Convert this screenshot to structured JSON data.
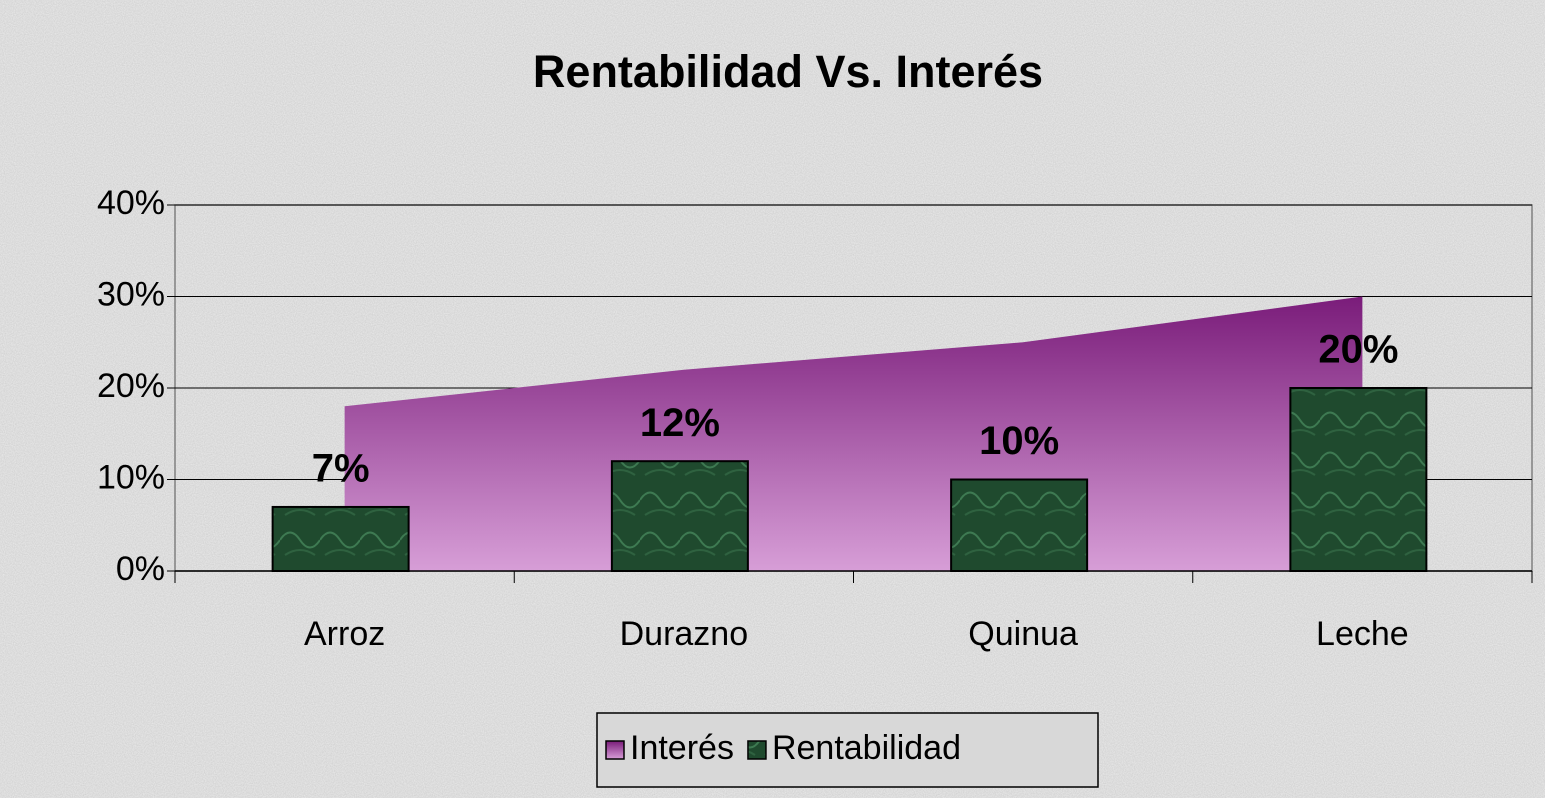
{
  "chart_data": {
    "type": "combo",
    "title": "Rentabilidad Vs. Interés",
    "categories": [
      "Arroz",
      "Durazno",
      "Quinua",
      "Leche"
    ],
    "series": [
      {
        "name": "Interés",
        "type": "area",
        "color": "#8a2a8a",
        "values": [
          18,
          22,
          25,
          30
        ]
      },
      {
        "name": "Rentabilidad",
        "type": "bar",
        "color": "#1f4a2e",
        "values": [
          7,
          12,
          10,
          20
        ],
        "value_labels": [
          "7%",
          "12%",
          "10%",
          "20%"
        ]
      }
    ],
    "ylim": [
      0,
      40
    ],
    "yticks": [
      {
        "value": 0,
        "label": "0%"
      },
      {
        "value": 10,
        "label": "10%"
      },
      {
        "value": 20,
        "label": "20%"
      },
      {
        "value": 30,
        "label": "30%"
      },
      {
        "value": 40,
        "label": "40%"
      }
    ],
    "grid": true,
    "legend": "bottom"
  }
}
